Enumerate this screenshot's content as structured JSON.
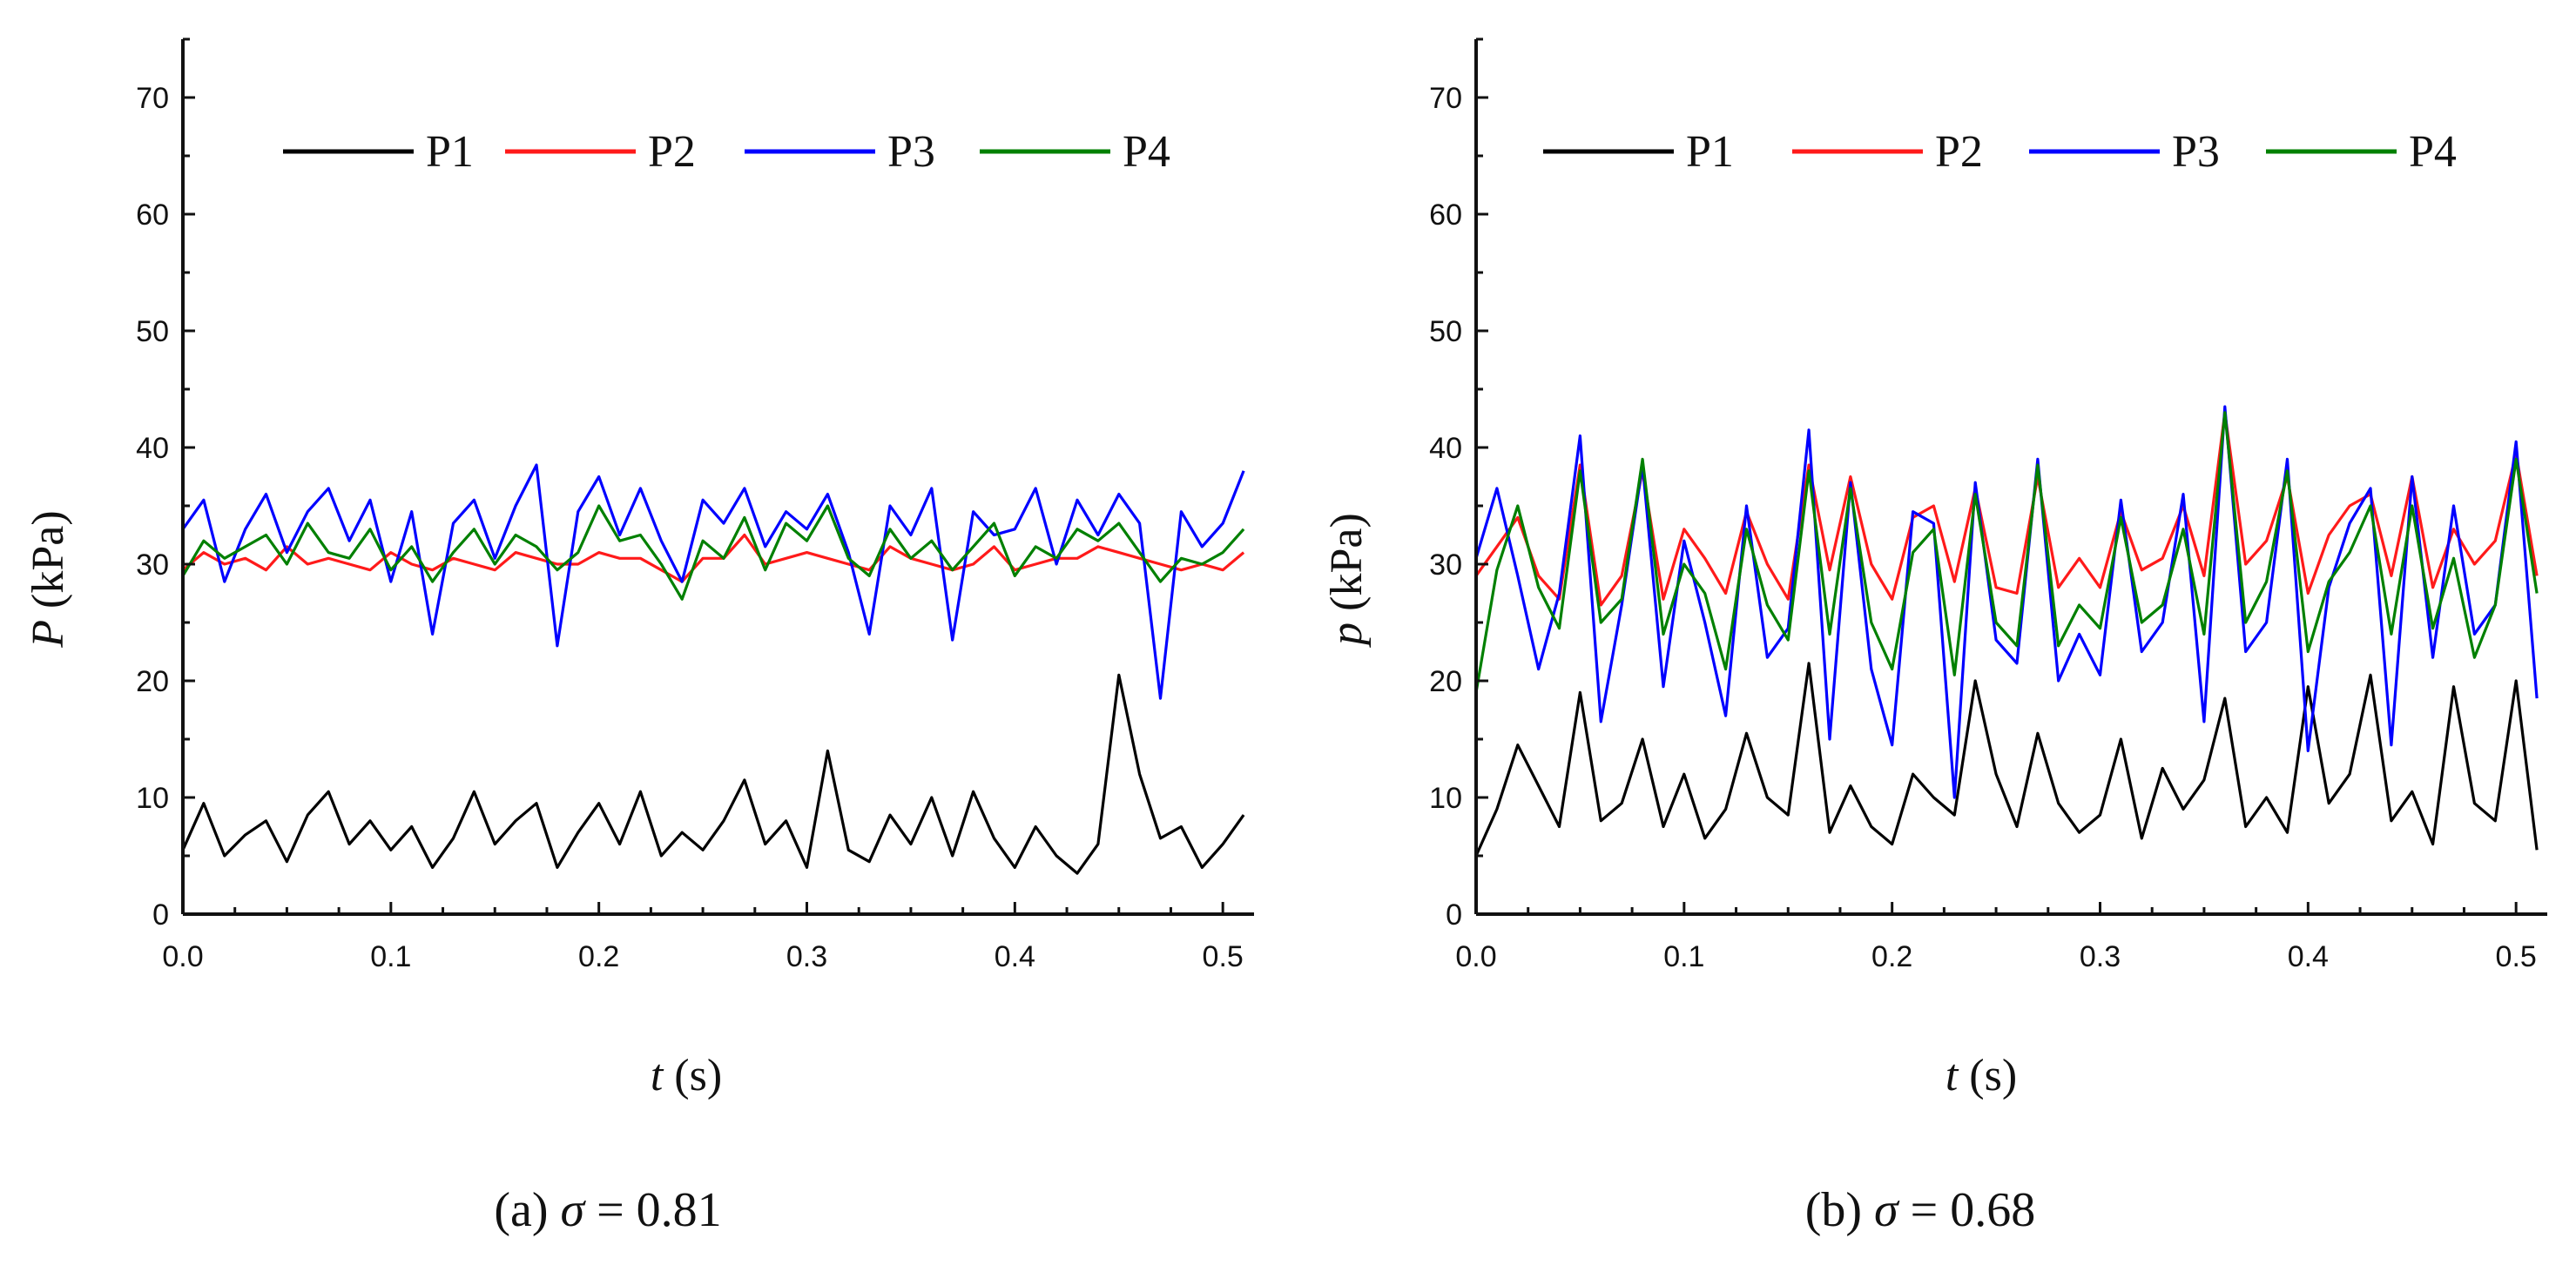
{
  "chart_data": [
    {
      "type": "line",
      "panel": "a",
      "caption_prefix": "(a) ",
      "caption_symbol": "σ",
      "caption_value": " = 0.81",
      "xlabel_var": "t",
      "xlabel_unit": " (s)",
      "ylabel_var": "P",
      "ylabel_unit": " (kPa)",
      "xlim": [
        0,
        0.515
      ],
      "ylim": [
        0,
        75
      ],
      "xticks": [
        "0.0",
        "0.1",
        "0.2",
        "0.3",
        "0.4",
        "0.5"
      ],
      "yticks": [
        "0",
        "10",
        "20",
        "30",
        "40",
        "50",
        "60",
        "70"
      ],
      "legend_position": "top",
      "x": [
        0.0,
        0.01,
        0.02,
        0.03,
        0.04,
        0.05,
        0.06,
        0.07,
        0.08,
        0.09,
        0.1,
        0.11,
        0.12,
        0.13,
        0.14,
        0.15,
        0.16,
        0.17,
        0.18,
        0.19,
        0.2,
        0.21,
        0.22,
        0.23,
        0.24,
        0.25,
        0.26,
        0.27,
        0.28,
        0.29,
        0.3,
        0.31,
        0.32,
        0.33,
        0.34,
        0.35,
        0.36,
        0.37,
        0.38,
        0.39,
        0.4,
        0.41,
        0.42,
        0.43,
        0.44,
        0.45,
        0.46,
        0.47,
        0.48,
        0.49,
        0.5,
        0.51
      ],
      "series": [
        {
          "name": "P1",
          "color": "#000000",
          "values": [
            5.5,
            9.5,
            5.0,
            6.8,
            8.0,
            4.5,
            8.5,
            10.5,
            6.0,
            8.0,
            5.5,
            7.5,
            4.0,
            6.5,
            10.5,
            6.0,
            8.0,
            9.5,
            4.0,
            7.0,
            9.5,
            6.0,
            10.5,
            5.0,
            7.0,
            5.5,
            8.0,
            11.5,
            6.0,
            8.0,
            4.0,
            14.0,
            5.5,
            4.5,
            8.5,
            6.0,
            10.0,
            5.0,
            10.5,
            6.5,
            4.0,
            7.5,
            5.0,
            3.5,
            6.0,
            20.5,
            12.0,
            6.5,
            7.5,
            4.0,
            6.0,
            8.5
          ]
        },
        {
          "name": "P2",
          "color": "#ff1a1a",
          "values": [
            29.5,
            31.0,
            30.0,
            30.5,
            29.5,
            31.5,
            30.0,
            30.5,
            30.0,
            29.5,
            31.0,
            30.0,
            29.5,
            30.5,
            30.0,
            29.5,
            31.0,
            30.5,
            30.0,
            30.0,
            31.0,
            30.5,
            30.5,
            29.5,
            28.5,
            30.5,
            30.5,
            32.5,
            30.0,
            30.5,
            31.0,
            30.5,
            30.0,
            29.5,
            31.5,
            30.5,
            30.0,
            29.5,
            30.0,
            31.5,
            29.5,
            30.0,
            30.5,
            30.5,
            31.5,
            31.0,
            30.5,
            30.0,
            29.5,
            30.0,
            29.5,
            31.0
          ]
        },
        {
          "name": "P3",
          "color": "#0000ff",
          "values": [
            33.0,
            35.5,
            28.5,
            33.0,
            36.0,
            31.0,
            34.5,
            36.5,
            32.0,
            35.5,
            28.5,
            34.5,
            24.0,
            33.5,
            35.5,
            30.5,
            35.0,
            38.5,
            23.0,
            34.5,
            37.5,
            32.5,
            36.5,
            32.0,
            28.5,
            35.5,
            33.5,
            36.5,
            31.5,
            34.5,
            33.0,
            36.0,
            31.0,
            24.0,
            35.0,
            32.5,
            36.5,
            23.5,
            34.5,
            32.5,
            33.0,
            36.5,
            30.0,
            35.5,
            32.5,
            36.0,
            33.5,
            18.5,
            34.5,
            31.5,
            33.5,
            38.0
          ]
        },
        {
          "name": "P4",
          "color": "#008000",
          "values": [
            29.0,
            32.0,
            30.5,
            31.5,
            32.5,
            30.0,
            33.5,
            31.0,
            30.5,
            33.0,
            29.5,
            31.5,
            28.5,
            31.0,
            33.0,
            30.0,
            32.5,
            31.5,
            29.5,
            31.0,
            35.0,
            32.0,
            32.5,
            30.0,
            27.0,
            32.0,
            30.5,
            34.0,
            29.5,
            33.5,
            32.0,
            35.0,
            30.5,
            29.0,
            33.0,
            30.5,
            32.0,
            29.5,
            31.5,
            33.5,
            29.0,
            31.5,
            30.5,
            33.0,
            32.0,
            33.5,
            31.0,
            28.5,
            30.5,
            30.0,
            31.0,
            33.0
          ]
        }
      ]
    },
    {
      "type": "line",
      "panel": "b",
      "caption_prefix": "(b)    ",
      "caption_symbol": "σ",
      "caption_value": " = 0.68",
      "xlabel_var": "t",
      "xlabel_unit": " (s)",
      "ylabel_var": "p",
      "ylabel_unit": " (kPa)",
      "xlim": [
        0,
        0.515
      ],
      "ylim": [
        0,
        75
      ],
      "xticks": [
        "0.0",
        "0.1",
        "0.2",
        "0.3",
        "0.4",
        "0.5"
      ],
      "yticks": [
        "0",
        "10",
        "20",
        "30",
        "40",
        "50",
        "60",
        "70"
      ],
      "legend_position": "top",
      "x": [
        0.0,
        0.01,
        0.02,
        0.03,
        0.04,
        0.05,
        0.06,
        0.07,
        0.08,
        0.09,
        0.1,
        0.11,
        0.12,
        0.13,
        0.14,
        0.15,
        0.16,
        0.17,
        0.18,
        0.19,
        0.2,
        0.21,
        0.22,
        0.23,
        0.24,
        0.25,
        0.26,
        0.27,
        0.28,
        0.29,
        0.3,
        0.31,
        0.32,
        0.33,
        0.34,
        0.35,
        0.36,
        0.37,
        0.38,
        0.39,
        0.4,
        0.41,
        0.42,
        0.43,
        0.44,
        0.45,
        0.46,
        0.47,
        0.48,
        0.49,
        0.5,
        0.51
      ],
      "series": [
        {
          "name": "P1",
          "color": "#000000",
          "values": [
            5.0,
            9.0,
            14.5,
            11.0,
            7.5,
            19.0,
            8.0,
            9.5,
            15.0,
            7.5,
            12.0,
            6.5,
            9.0,
            15.5,
            10.0,
            8.5,
            21.5,
            7.0,
            11.0,
            7.5,
            6.0,
            12.0,
            10.0,
            8.5,
            20.0,
            12.0,
            7.5,
            15.5,
            9.5,
            7.0,
            8.5,
            15.0,
            6.5,
            12.5,
            9.0,
            11.5,
            18.5,
            7.5,
            10.0,
            7.0,
            19.5,
            9.5,
            12.0,
            20.5,
            8.0,
            10.5,
            6.0,
            19.5,
            9.5,
            8.0,
            20.0,
            5.5
          ]
        },
        {
          "name": "P2",
          "color": "#ff1a1a",
          "values": [
            29.0,
            31.5,
            34.0,
            29.0,
            27.0,
            38.5,
            26.5,
            29.0,
            38.0,
            27.0,
            33.0,
            30.5,
            27.5,
            34.5,
            30.0,
            27.0,
            38.5,
            29.5,
            37.5,
            30.0,
            27.0,
            34.0,
            35.0,
            28.5,
            36.5,
            28.0,
            27.5,
            37.5,
            28.0,
            30.5,
            28.0,
            34.5,
            29.5,
            30.5,
            35.0,
            29.0,
            43.0,
            30.0,
            32.0,
            37.5,
            27.5,
            32.5,
            35.0,
            36.0,
            29.0,
            37.5,
            28.0,
            33.0,
            30.0,
            32.0,
            39.5,
            29.0
          ]
        },
        {
          "name": "P3",
          "color": "#0000ff",
          "values": [
            30.5,
            36.5,
            29.0,
            21.0,
            27.5,
            41.0,
            16.5,
            26.5,
            38.5,
            19.5,
            32.0,
            25.0,
            17.0,
            35.0,
            22.0,
            24.5,
            41.5,
            15.0,
            37.0,
            21.0,
            14.5,
            34.5,
            33.5,
            10.0,
            37.0,
            23.5,
            21.5,
            39.0,
            20.0,
            24.0,
            20.5,
            35.5,
            22.5,
            25.0,
            36.0,
            16.5,
            43.5,
            22.5,
            25.0,
            39.0,
            14.0,
            28.0,
            33.5,
            36.5,
            14.5,
            37.5,
            22.0,
            35.0,
            24.0,
            26.5,
            40.5,
            18.5
          ]
        },
        {
          "name": "P4",
          "color": "#008000",
          "values": [
            19.0,
            29.5,
            35.0,
            28.0,
            24.5,
            38.0,
            25.0,
            27.0,
            39.0,
            24.0,
            30.0,
            27.5,
            21.0,
            33.0,
            26.5,
            23.5,
            38.0,
            24.0,
            36.5,
            25.0,
            21.0,
            31.0,
            33.0,
            20.5,
            36.0,
            25.0,
            23.0,
            38.5,
            23.0,
            26.5,
            24.5,
            34.0,
            25.0,
            26.5,
            33.0,
            24.0,
            43.0,
            25.0,
            28.5,
            38.0,
            22.5,
            28.5,
            31.0,
            35.0,
            24.0,
            35.0,
            24.5,
            30.5,
            22.0,
            26.5,
            39.0,
            27.5
          ]
        }
      ]
    }
  ]
}
